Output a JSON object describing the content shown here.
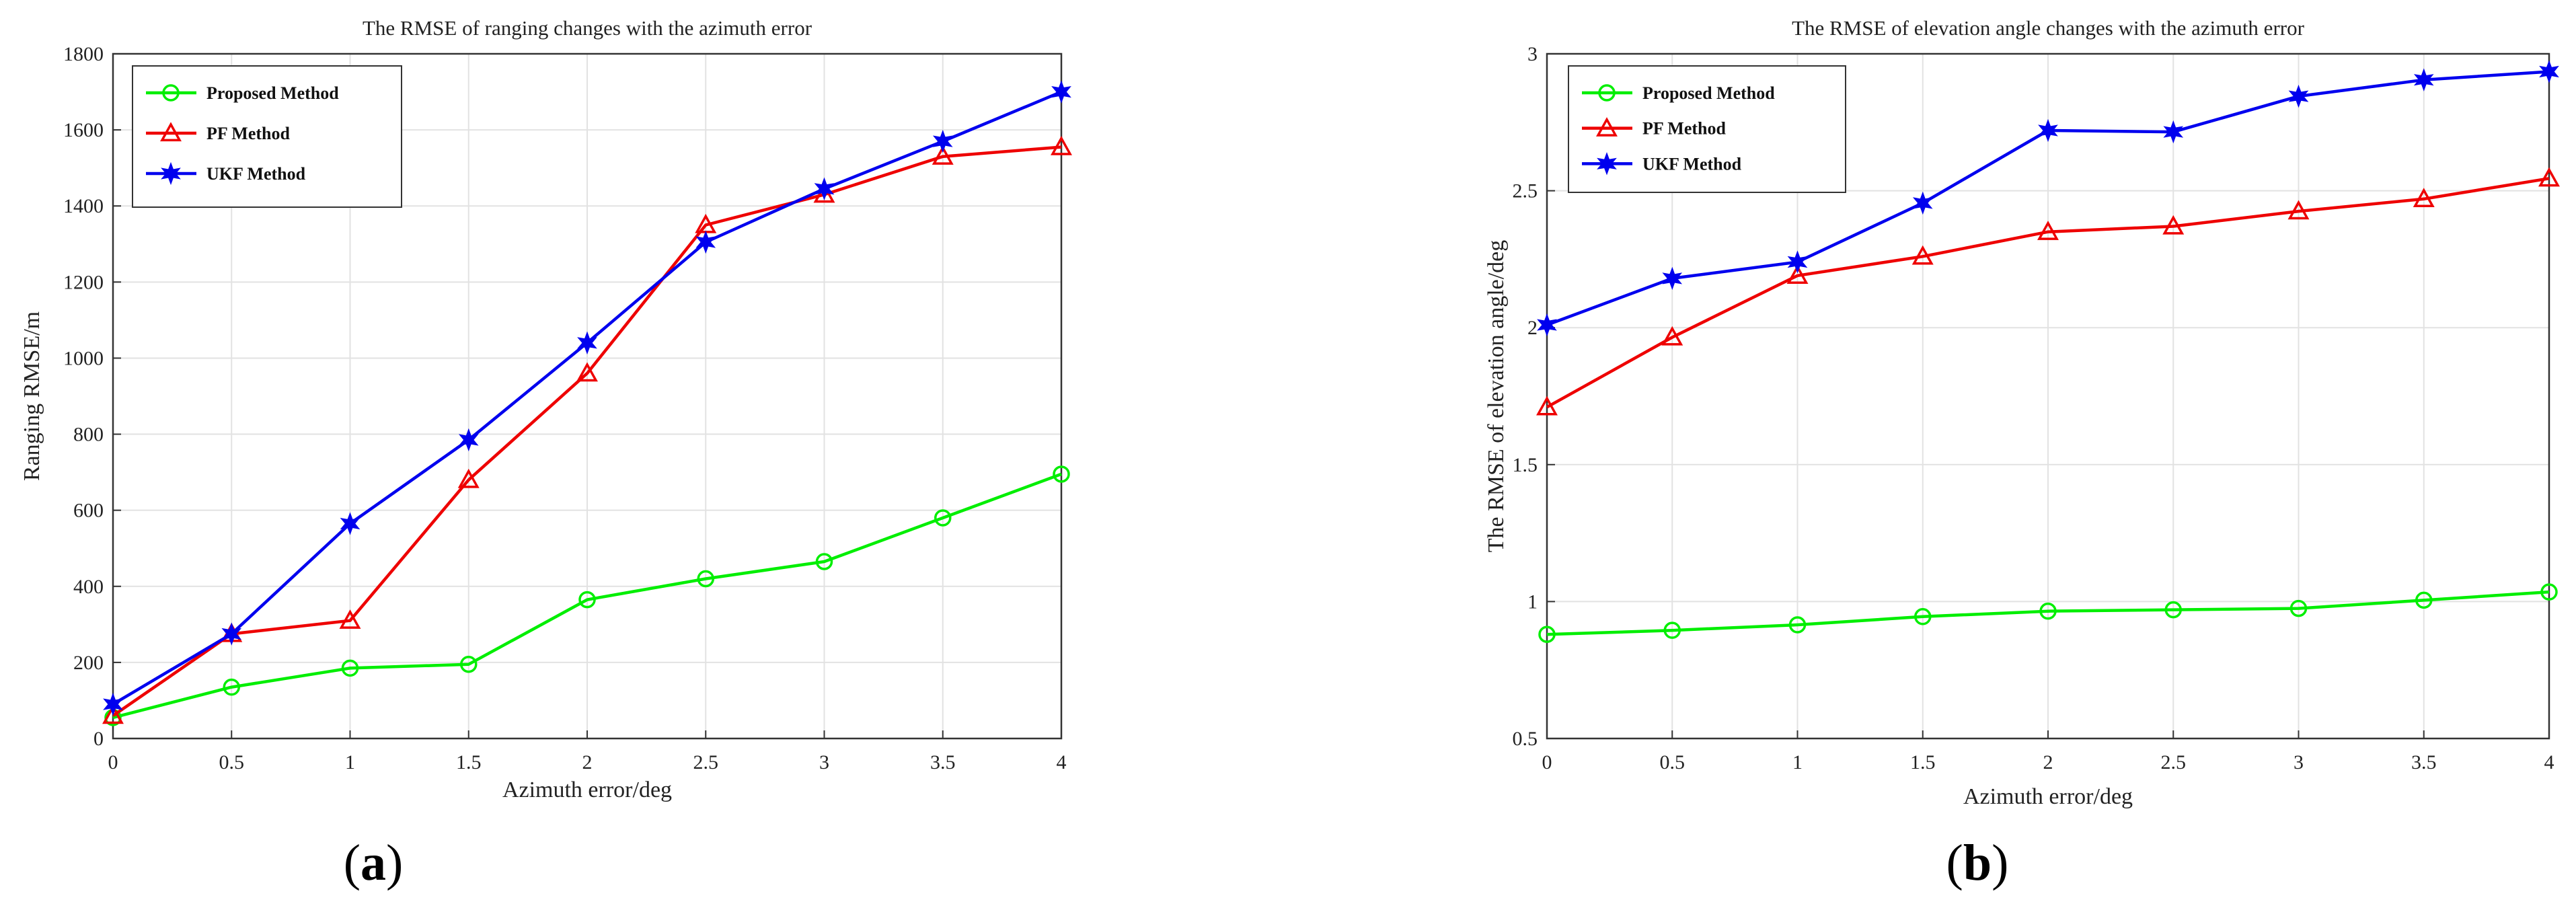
{
  "chart_data": [
    {
      "type": "line",
      "title": "The RMSE of ranging changes with the azimuth error",
      "xlabel": "Azimuth error/deg",
      "ylabel": "Ranging RMSE/m",
      "panel_label": {
        "open": "(",
        "letter": "a",
        "close": ")"
      },
      "x": [
        0,
        0.5,
        1,
        1.5,
        2,
        2.5,
        3,
        3.5,
        4
      ],
      "xlim": [
        0,
        4
      ],
      "ylim": [
        0,
        1800
      ],
      "xticks": [
        "0",
        "0.5",
        "1",
        "1.5",
        "2",
        "2.5",
        "3",
        "3.5",
        "4"
      ],
      "xtick_values": [
        0,
        0.5,
        1,
        1.5,
        2,
        2.5,
        3,
        3.5,
        4
      ],
      "yticks": [
        "0",
        "200",
        "400",
        "600",
        "800",
        "1000",
        "1200",
        "1400",
        "1600",
        "1800"
      ],
      "ytick_values": [
        0,
        200,
        400,
        600,
        800,
        1000,
        1200,
        1400,
        1600,
        1800
      ],
      "grid": true,
      "legend_position": "top-left",
      "series": [
        {
          "name": "Proposed Method",
          "color": "#00ee00",
          "marker": "circle",
          "values": [
            55,
            135,
            185,
            195,
            365,
            420,
            465,
            580,
            695
          ]
        },
        {
          "name": "PF Method",
          "color": "#ee0000",
          "marker": "triangle",
          "values": [
            60,
            275,
            310,
            680,
            960,
            1350,
            1430,
            1530,
            1555
          ]
        },
        {
          "name": "UKF Method",
          "color": "#0000ee",
          "marker": "star",
          "values": [
            90,
            275,
            565,
            785,
            1040,
            1305,
            1445,
            1570,
            1700
          ]
        }
      ]
    },
    {
      "type": "line",
      "title": "The RMSE of elevation angle changes with the azimuth error",
      "xlabel": "Azimuth error/deg",
      "ylabel": "The RMSE of elevation angle/deg",
      "panel_label": {
        "open": "(",
        "letter": "b",
        "close": ")"
      },
      "x": [
        0,
        0.5,
        1,
        1.5,
        2,
        2.5,
        3,
        3.5,
        4
      ],
      "xlim": [
        0,
        4
      ],
      "ylim": [
        0.5,
        3
      ],
      "xticks": [
        "0",
        "0.5",
        "1",
        "1.5",
        "2",
        "2.5",
        "3",
        "3.5",
        "4"
      ],
      "xtick_values": [
        0,
        0.5,
        1,
        1.5,
        2,
        2.5,
        3,
        3.5,
        4
      ],
      "yticks": [
        "0.5",
        "1",
        "1.5",
        "2",
        "2.5",
        "3"
      ],
      "ytick_values": [
        0.5,
        1,
        1.5,
        2,
        2.5,
        3
      ],
      "grid": true,
      "legend_position": "top-left",
      "series": [
        {
          "name": "Proposed Method",
          "color": "#00ee00",
          "marker": "circle",
          "values": [
            0.88,
            0.895,
            0.915,
            0.945,
            0.965,
            0.97,
            0.975,
            1.005,
            1.035
          ]
        },
        {
          "name": "PF Method",
          "color": "#ee0000",
          "marker": "triangle",
          "values": [
            1.71,
            1.965,
            2.19,
            2.26,
            2.35,
            2.37,
            2.425,
            2.47,
            2.545
          ]
        },
        {
          "name": "UKF Method",
          "color": "#0000ee",
          "marker": "star",
          "values": [
            2.01,
            2.18,
            2.24,
            2.455,
            2.72,
            2.715,
            2.845,
            2.905,
            2.935
          ]
        }
      ]
    }
  ]
}
